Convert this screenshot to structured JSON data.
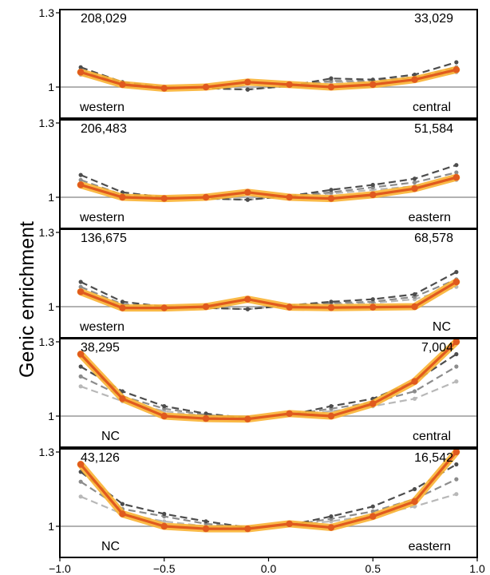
{
  "chart_data": {
    "type": "line",
    "ylabel": "Genic enrichment",
    "xlim": [
      -1.0,
      1.0
    ],
    "ylim": [
      0.93,
      1.3
    ],
    "reference_line": 1,
    "x_ticks": [
      -1.0,
      -0.5,
      0.0,
      0.5,
      1.0
    ],
    "x_tick_labels": [
      "−1.0",
      "−0.5",
      "0.0",
      "0.5",
      "1.0"
    ],
    "y_ticks": [
      1,
      1.3
    ],
    "y_tick_labels": [
      "1",
      "1.3"
    ],
    "x": [
      -0.9,
      -0.7,
      -0.5,
      -0.3,
      -0.1,
      0.1,
      0.3,
      0.5,
      0.7,
      0.9
    ],
    "colors": {
      "main": "#E05A1E",
      "band": "#F9B233",
      "grey_dark": "#4d4d4d",
      "grey_mid": "#8c8c8c",
      "grey_light": "#b8b8b8",
      "ref": "#999999"
    },
    "panels": [
      {
        "count_left": "208,029",
        "count_right": "33,029",
        "label_left": "western",
        "label_right": "central",
        "main": [
          1.06,
          1.01,
          0.995,
          1.0,
          1.02,
          1.01,
          1.0,
          1.01,
          1.03,
          1.07
        ],
        "reference_series": [
          [
            1.08,
            1.02,
            1.0,
            0.995,
            0.99,
            1.005,
            1.035,
            1.03,
            1.05,
            1.1
          ],
          [
            1.07,
            1.015,
            1.0,
            0.995,
            0.99,
            1.005,
            1.025,
            1.025,
            1.04,
            1.08
          ],
          [
            1.05,
            1.01,
            1.0,
            0.995,
            0.99,
            1.005,
            1.02,
            1.02,
            1.03,
            1.06
          ]
        ]
      },
      {
        "count_left": "206,483",
        "count_right": "51,584",
        "label_left": "western",
        "label_right": "eastern",
        "main": [
          1.05,
          1.0,
          0.995,
          1.0,
          1.02,
          1.0,
          0.995,
          1.01,
          1.035,
          1.08
        ],
        "reference_series": [
          [
            1.09,
            1.02,
            1.0,
            0.995,
            0.99,
            1.005,
            1.03,
            1.05,
            1.075,
            1.13
          ],
          [
            1.07,
            1.01,
            1.0,
            0.995,
            0.99,
            1.005,
            1.02,
            1.04,
            1.06,
            1.1
          ],
          [
            1.05,
            1.005,
            1.0,
            0.995,
            0.99,
            1.005,
            1.015,
            1.03,
            1.045,
            1.07
          ]
        ]
      },
      {
        "count_left": "136,675",
        "count_right": "68,578",
        "label_left": "western",
        "label_right": "NC",
        "main": [
          1.06,
          0.995,
          0.995,
          1.0,
          1.03,
          0.998,
          0.996,
          0.998,
          1.0,
          1.1
        ],
        "reference_series": [
          [
            1.1,
            1.02,
            1.0,
            0.995,
            0.99,
            1.005,
            1.02,
            1.03,
            1.05,
            1.14
          ],
          [
            1.08,
            1.01,
            1.0,
            0.995,
            0.99,
            1.005,
            1.015,
            1.02,
            1.04,
            1.11
          ],
          [
            1.06,
            1.005,
            1.0,
            0.995,
            0.99,
            1.005,
            1.01,
            1.015,
            1.03,
            1.08
          ]
        ]
      },
      {
        "count_left": "38,295",
        "count_right": "7,004",
        "label_left": "NC",
        "label_right": "central",
        "main": [
          1.25,
          1.07,
          1.0,
          0.99,
          0.988,
          1.01,
          1.0,
          1.05,
          1.14,
          1.3
        ],
        "reference_series": [
          [
            1.2,
            1.1,
            1.04,
            1.01,
            0.992,
            1.005,
            1.04,
            1.07,
            1.14,
            1.25
          ],
          [
            1.16,
            1.08,
            1.03,
            1.005,
            0.992,
            1.005,
            1.03,
            1.055,
            1.1,
            1.2
          ],
          [
            1.12,
            1.06,
            1.02,
            1.0,
            0.992,
            1.005,
            1.02,
            1.04,
            1.07,
            1.14
          ]
        ]
      },
      {
        "count_left": "43,126",
        "count_right": "16,542",
        "label_left": "NC",
        "label_right": "eastern",
        "main": [
          1.25,
          1.05,
          1.0,
          0.99,
          0.99,
          1.01,
          0.995,
          1.04,
          1.1,
          1.3
        ],
        "reference_series": [
          [
            1.22,
            1.09,
            1.05,
            1.02,
            0.995,
            1.005,
            1.04,
            1.08,
            1.15,
            1.25
          ],
          [
            1.18,
            1.07,
            1.04,
            1.01,
            0.995,
            1.005,
            1.03,
            1.06,
            1.11,
            1.19
          ],
          [
            1.12,
            1.05,
            1.02,
            1.0,
            0.995,
            1.005,
            1.02,
            1.045,
            1.08,
            1.13
          ]
        ]
      }
    ]
  }
}
